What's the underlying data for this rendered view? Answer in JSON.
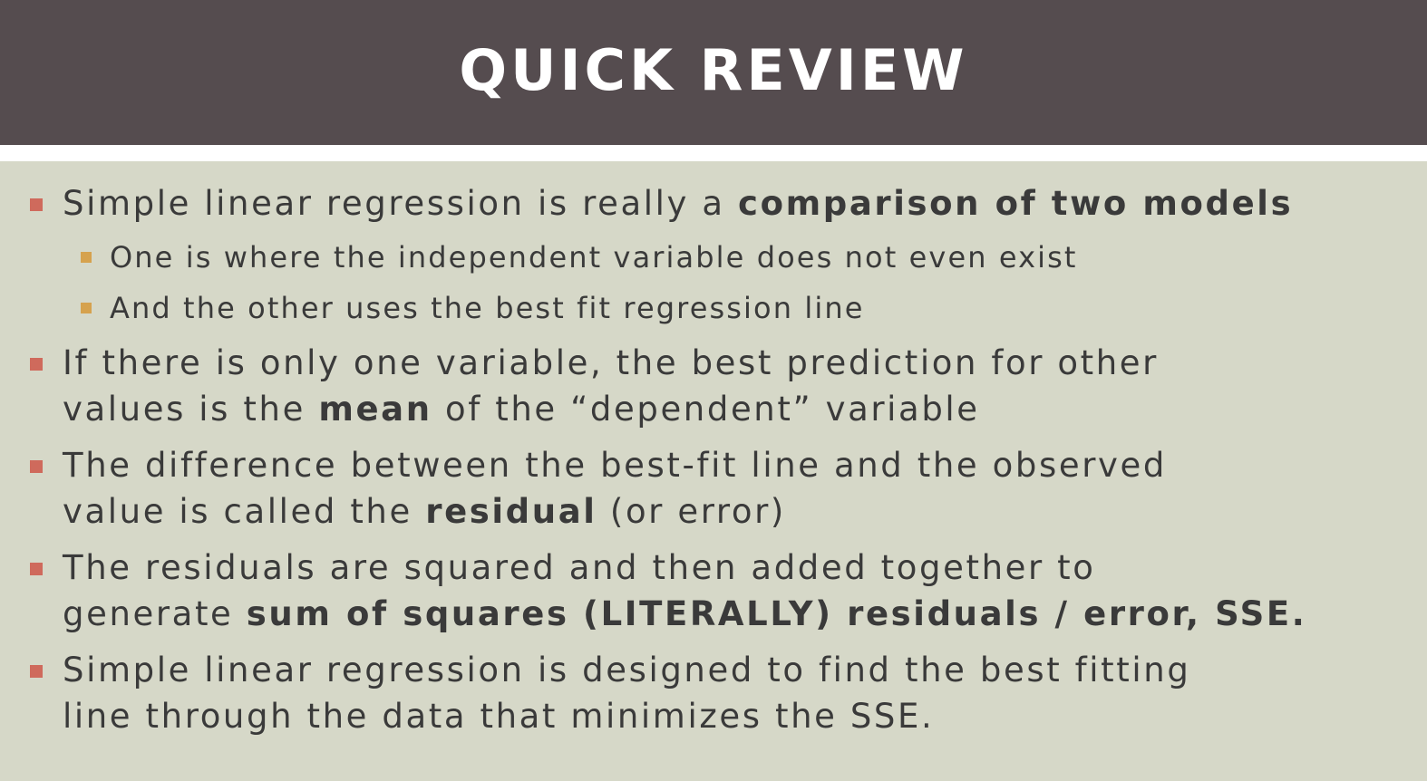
{
  "slide": {
    "title": "QUICK REVIEW"
  },
  "bullets": [
    {
      "level": 1,
      "lines": [
        [
          {
            "text": "Simple linear regression is really a ",
            "bold": false
          },
          {
            "text": "comparison of two models",
            "bold": true
          }
        ]
      ]
    },
    {
      "level": 2,
      "lines": [
        [
          {
            "text": "One is where the independent variable does not even exist",
            "bold": false
          }
        ]
      ]
    },
    {
      "level": 2,
      "lines": [
        [
          {
            "text": "And the other uses the best fit regression line",
            "bold": false
          }
        ]
      ]
    },
    {
      "level": 1,
      "lines": [
        [
          {
            "text": "If there is only one variable, the best prediction for other",
            "bold": false
          }
        ],
        [
          {
            "text": "values is the ",
            "bold": false
          },
          {
            "text": "mean",
            "bold": true
          },
          {
            "text": " of the “dependent” variable",
            "bold": false
          }
        ]
      ]
    },
    {
      "level": 1,
      "lines": [
        [
          {
            "text": "The difference between the best-fit line and the observed",
            "bold": false
          }
        ],
        [
          {
            "text": "value is called the ",
            "bold": false
          },
          {
            "text": "residual",
            "bold": true
          },
          {
            "text": " (or error)",
            "bold": false
          }
        ]
      ]
    },
    {
      "level": 1,
      "lines": [
        [
          {
            "text": "The residuals are squared and then added together to",
            "bold": false
          }
        ],
        [
          {
            "text": "generate ",
            "bold": false
          },
          {
            "text": "sum of squares (LITERALLY) residuals / error, SSE.",
            "bold": true
          }
        ]
      ]
    },
    {
      "level": 1,
      "lines": [
        [
          {
            "text": "Simple linear regression is designed to find the best fitting",
            "bold": false
          }
        ],
        [
          {
            "text": "line through the data that minimizes the SSE.",
            "bold": false
          }
        ]
      ]
    }
  ],
  "colors": {
    "title_bar": "#554c4f",
    "background": "#d6d8c8",
    "main_marker": "#cf6a5c",
    "sub_marker": "#d6a24e",
    "text": "#3a3a3a"
  }
}
